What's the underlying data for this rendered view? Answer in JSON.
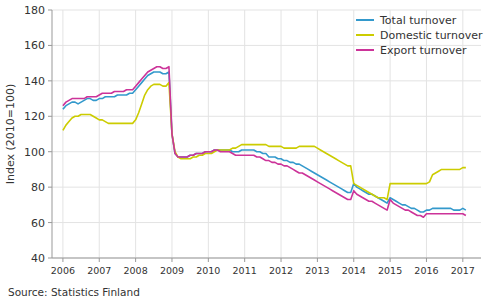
{
  "chart_data": {
    "type": "line",
    "y_label": "Index (2010=100)",
    "annotations": [
      "Source: Statistics Finland"
    ],
    "ylim": [
      40,
      180
    ],
    "yticks": [
      40,
      60,
      80,
      100,
      120,
      140,
      160,
      180
    ],
    "xlim": [
      2005.7,
      2017.5
    ],
    "xticks": [
      2006,
      2007,
      2008,
      2009,
      2010,
      2011,
      2012,
      2013,
      2014,
      2015,
      2016,
      2017
    ],
    "grid": true,
    "legend": "upper-right",
    "x": [
      2006,
      2006.0833333333333,
      2006.1666666666667,
      2006.25,
      2006.3333333333333,
      2006.4166666666667,
      2006.5,
      2006.5833333333333,
      2006.6666666666667,
      2006.75,
      2006.8333333333333,
      2006.9166666666667,
      2007,
      2007.0833333333333,
      2007.1666666666667,
      2007.25,
      2007.3333333333333,
      2007.4166666666667,
      2007.5,
      2007.5833333333333,
      2007.6666666666667,
      2007.75,
      2007.8333333333333,
      2007.9166666666667,
      2008,
      2008.0833333333333,
      2008.1666666666667,
      2008.25,
      2008.3333333333333,
      2008.4166666666667,
      2008.5,
      2008.5833333333333,
      2008.6666666666667,
      2008.75,
      2008.8333333333333,
      2008.9166666666667,
      2009,
      2009.0833333333333,
      2009.1666666666667,
      2009.25,
      2009.3333333333333,
      2009.4166666666667,
      2009.5,
      2009.5833333333333,
      2009.6666666666667,
      2009.75,
      2009.8333333333333,
      2009.9166666666667,
      2010,
      2010.0833333333333,
      2010.1666666666667,
      2010.25,
      2010.3333333333333,
      2010.4166666666667,
      2010.5,
      2010.5833333333333,
      2010.6666666666667,
      2010.75,
      2010.8333333333333,
      2010.9166666666667,
      2011,
      2011.0833333333333,
      2011.1666666666667,
      2011.25,
      2011.3333333333333,
      2011.4166666666667,
      2011.5,
      2011.5833333333333,
      2011.6666666666667,
      2011.75,
      2011.8333333333333,
      2011.9166666666667,
      2012,
      2012.0833333333333,
      2012.1666666666667,
      2012.25,
      2012.3333333333333,
      2012.4166666666667,
      2012.5,
      2012.5833333333333,
      2012.6666666666667,
      2012.75,
      2012.8333333333333,
      2012.9166666666667,
      2013,
      2013.0833333333333,
      2013.1666666666667,
      2013.25,
      2013.3333333333333,
      2013.4166666666667,
      2013.5,
      2013.5833333333333,
      2013.6666666666667,
      2013.75,
      2013.8333333333333,
      2013.9166666666667,
      2014,
      2014.0833333333333,
      2014.1666666666667,
      2014.25,
      2014.3333333333333,
      2014.4166666666667,
      2014.5,
      2014.5833333333333,
      2014.6666666666667,
      2014.75,
      2014.8333333333333,
      2014.9166666666667,
      2015,
      2015.0833333333333,
      2015.1666666666667,
      2015.25,
      2015.3333333333333,
      2015.4166666666667,
      2015.5,
      2015.5833333333333,
      2015.6666666666667,
      2015.75,
      2015.8333333333333,
      2015.9166666666667,
      2016,
      2016.0833333333333,
      2016.1666666666667,
      2016.25,
      2016.3333333333333,
      2016.4166666666667,
      2016.5,
      2016.5833333333333,
      2016.6666666666667,
      2016.75,
      2016.8333333333333,
      2016.9166666666667,
      2017,
      2017.0833333333333
    ],
    "series": [
      {
        "name": "Total turnover",
        "color": "#3399cc",
        "values": [
          124,
          126,
          127,
          128,
          128,
          127,
          128,
          129,
          130,
          130,
          129,
          129,
          130,
          130,
          131,
          131,
          131,
          131,
          132,
          132,
          132,
          132,
          133,
          133,
          135,
          137,
          139,
          141,
          143,
          144,
          145,
          145,
          145,
          144,
          144,
          145,
          110,
          99,
          97,
          97,
          97,
          97,
          98,
          98,
          99,
          99,
          99,
          100,
          100,
          100,
          101,
          101,
          101,
          101,
          101,
          101,
          100,
          100,
          100,
          101,
          101,
          101,
          101,
          101,
          100,
          100,
          99,
          99,
          97,
          97,
          97,
          96,
          96,
          95,
          95,
          94,
          94,
          93,
          93,
          92,
          91,
          90,
          89,
          88,
          87,
          86,
          85,
          84,
          83,
          82,
          81,
          80,
          79,
          78,
          77,
          77,
          82,
          80,
          79,
          78,
          77,
          76,
          76,
          75,
          74,
          73,
          72,
          71,
          74,
          73,
          72,
          71,
          70,
          70,
          69,
          68,
          68,
          67,
          66,
          66,
          67,
          67,
          68,
          68,
          68,
          68,
          68,
          68,
          68,
          67,
          67,
          67,
          68,
          67
        ]
      },
      {
        "name": "Domestic turnover",
        "color": "#cccc00",
        "values": [
          112,
          115,
          117,
          119,
          120,
          120,
          121,
          121,
          121,
          121,
          120,
          119,
          118,
          118,
          117,
          116,
          116,
          116,
          116,
          116,
          116,
          116,
          116,
          116,
          118,
          122,
          127,
          132,
          135,
          137,
          138,
          138,
          138,
          137,
          137,
          139,
          110,
          100,
          97,
          96,
          96,
          96,
          96,
          97,
          97,
          98,
          98,
          99,
          99,
          99,
          100,
          101,
          101,
          101,
          101,
          101,
          102,
          102,
          103,
          104,
          104,
          104,
          104,
          104,
          104,
          104,
          104,
          104,
          103,
          103,
          103,
          103,
          103,
          102,
          102,
          102,
          102,
          102,
          103,
          103,
          103,
          103,
          103,
          103,
          102,
          101,
          100,
          99,
          98,
          97,
          96,
          95,
          94,
          93,
          92,
          92,
          82,
          81,
          80,
          79,
          78,
          77,
          76,
          75,
          74,
          74,
          74,
          73,
          82,
          82,
          82,
          82,
          82,
          82,
          82,
          82,
          82,
          82,
          82,
          82,
          82,
          83,
          87,
          88,
          89,
          90,
          90,
          90,
          90,
          90,
          90,
          90,
          91,
          91
        ]
      },
      {
        "name": "Export turnover",
        "color": "#cc3399",
        "values": [
          126,
          128,
          129,
          130,
          130,
          130,
          130,
          130,
          131,
          131,
          131,
          131,
          132,
          133,
          133,
          133,
          133,
          134,
          134,
          134,
          134,
          135,
          135,
          135,
          137,
          139,
          141,
          143,
          145,
          146,
          147,
          148,
          148,
          147,
          147,
          148,
          110,
          99,
          97,
          97,
          97,
          97,
          98,
          98,
          99,
          99,
          99,
          100,
          100,
          100,
          101,
          101,
          100,
          100,
          100,
          100,
          99,
          98,
          98,
          98,
          98,
          98,
          98,
          98,
          97,
          97,
          96,
          95,
          95,
          94,
          94,
          93,
          93,
          92,
          92,
          91,
          90,
          89,
          88,
          88,
          87,
          86,
          85,
          84,
          83,
          82,
          81,
          80,
          79,
          78,
          77,
          76,
          75,
          74,
          73,
          73,
          78,
          76,
          75,
          74,
          73,
          72,
          72,
          71,
          70,
          69,
          68,
          67,
          73,
          71,
          70,
          69,
          68,
          67,
          67,
          66,
          65,
          64,
          64,
          63,
          65,
          65,
          65,
          65,
          65,
          65,
          65,
          65,
          65,
          65,
          65,
          65,
          65,
          64
        ]
      }
    ]
  }
}
